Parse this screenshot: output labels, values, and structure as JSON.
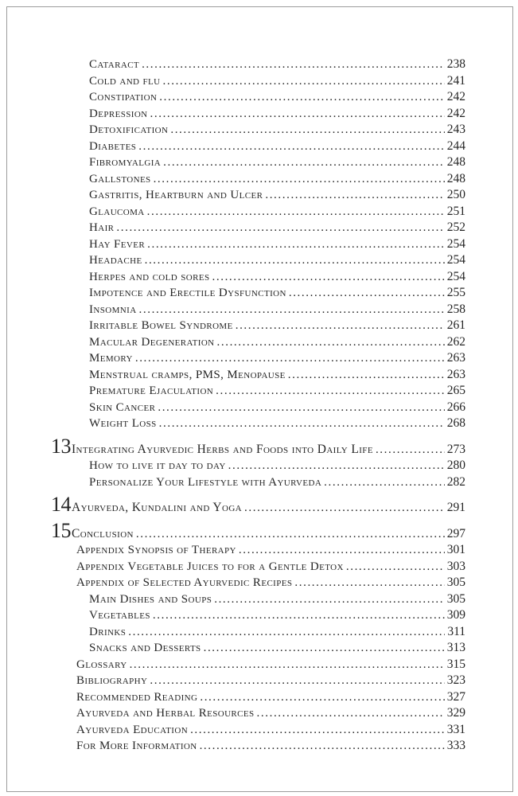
{
  "colors": {
    "text": "#262626",
    "border": "#9c9c9c",
    "background": "#ffffff"
  },
  "toc": {
    "entries": [
      {
        "level": "subsection",
        "label": "Cataract",
        "page": "238"
      },
      {
        "level": "subsection",
        "label": "Cold and flu",
        "page": "241"
      },
      {
        "level": "subsection",
        "label": "Constipation",
        "page": "242"
      },
      {
        "level": "subsection",
        "label": "Depression",
        "page": "242"
      },
      {
        "level": "subsection",
        "label": "Detoxification",
        "page": "243"
      },
      {
        "level": "subsection",
        "label": "Diabetes",
        "page": "244"
      },
      {
        "level": "subsection",
        "label": "Fibromyalgia",
        "page": "248"
      },
      {
        "level": "subsection",
        "label": "Gallstones",
        "page": "248"
      },
      {
        "level": "subsection",
        "label": "Gastritis, Heartburn and Ulcer",
        "page": "250"
      },
      {
        "level": "subsection",
        "label": "Glaucoma",
        "page": "251"
      },
      {
        "level": "subsection",
        "label": "Hair",
        "page": "252"
      },
      {
        "level": "subsection",
        "label": "Hay Fever",
        "page": "254"
      },
      {
        "level": "subsection",
        "label": "Headache",
        "page": "254"
      },
      {
        "level": "subsection",
        "label": "Herpes and cold sores",
        "page": "254"
      },
      {
        "level": "subsection",
        "label": "Impotence and Erectile Dysfunction",
        "page": "255"
      },
      {
        "level": "subsection",
        "label": "Insomnia",
        "page": "258"
      },
      {
        "level": "subsection",
        "label": "Irritable Bowel Syndrome",
        "page": "261"
      },
      {
        "level": "subsection",
        "label": "Macular Degeneration",
        "page": "262"
      },
      {
        "level": "subsection",
        "label": "Memory",
        "page": "263"
      },
      {
        "level": "subsection",
        "label": "Menstrual cramps, PMS, Menopause",
        "page": "263"
      },
      {
        "level": "subsection",
        "label": "Premature Ejaculation",
        "page": "265"
      },
      {
        "level": "subsection",
        "label": "Skin Cancer",
        "page": "266"
      },
      {
        "level": "subsection",
        "label": "Weight Loss",
        "page": "268"
      },
      {
        "level": "chapter",
        "number": "13",
        "label": "Integrating Ayurvedic Herbs and Foods into Daily Life",
        "page": "273"
      },
      {
        "level": "subsection",
        "label": "How to live it day to day",
        "page": "280"
      },
      {
        "level": "subsection",
        "label": "Personalize Your Lifestyle with Ayurveda",
        "page": "282"
      },
      {
        "level": "chapter",
        "number": "14",
        "label": "Ayurveda, Kundalini and Yoga",
        "page": "291"
      },
      {
        "level": "chapter",
        "number": "15",
        "label": "Conclusion",
        "page": "297"
      },
      {
        "level": "section",
        "label": "Appendix Synopsis of Therapy",
        "page": "301"
      },
      {
        "level": "section",
        "label": "Appendix Vegetable Juices to for a Gentle Detox",
        "page": "303"
      },
      {
        "level": "section",
        "label": "Appendix of Selected Ayurvedic Recipes",
        "page": "305"
      },
      {
        "level": "subsection",
        "label": "Main Dishes and Soups",
        "page": "305"
      },
      {
        "level": "subsection",
        "label": "Vegetables",
        "page": "309"
      },
      {
        "level": "subsection",
        "label": "Drinks",
        "page": "311"
      },
      {
        "level": "subsection",
        "label": "Snacks and Desserts",
        "page": "313"
      },
      {
        "level": "section",
        "label": "Glossary",
        "page": "315"
      },
      {
        "level": "section",
        "label": "Bibliography",
        "page": "323"
      },
      {
        "level": "section",
        "label": "Recommended Reading",
        "page": "327"
      },
      {
        "level": "section",
        "label": "Ayurveda and Herbal Resources",
        "page": "329"
      },
      {
        "level": "section",
        "label": "Ayurveda Education",
        "page": "331"
      },
      {
        "level": "section",
        "label": "For More Information",
        "page": "333"
      }
    ]
  }
}
